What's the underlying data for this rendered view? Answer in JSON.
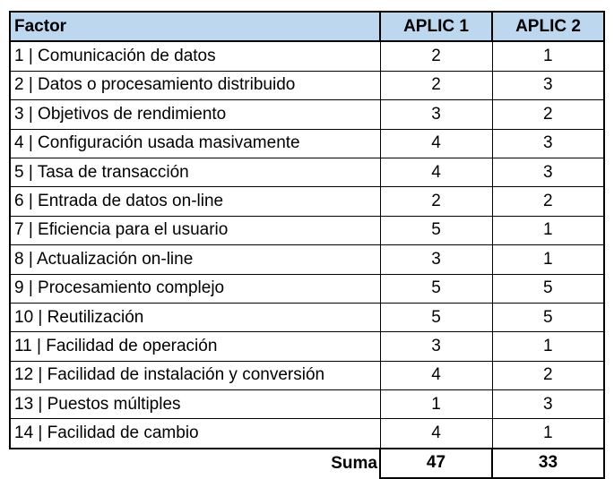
{
  "table": {
    "headers": {
      "factor": "Factor",
      "aplic1": "APLIC 1",
      "aplic2": "APLIC 2"
    },
    "rows": [
      {
        "factor": "1 | Comunicación de datos",
        "aplic1": "2",
        "aplic2": "1"
      },
      {
        "factor": "2 | Datos o procesamiento distribuido",
        "aplic1": "2",
        "aplic2": "3"
      },
      {
        "factor": "3 | Objetivos de rendimiento",
        "aplic1": "3",
        "aplic2": "2"
      },
      {
        "factor": "4 | Configuración usada masivamente",
        "aplic1": "4",
        "aplic2": "3"
      },
      {
        "factor": "5 | Tasa de transacción",
        "aplic1": "4",
        "aplic2": "3"
      },
      {
        "factor": "6 | Entrada de datos on-line",
        "aplic1": "2",
        "aplic2": "2"
      },
      {
        "factor": "7 | Eficiencia para el usuario",
        "aplic1": "5",
        "aplic2": "1"
      },
      {
        "factor": "8 | Actualización on-line",
        "aplic1": "3",
        "aplic2": "1"
      },
      {
        "factor": "9 | Procesamiento complejo",
        "aplic1": "5",
        "aplic2": "5"
      },
      {
        "factor": "10 | Reutilización",
        "aplic1": "5",
        "aplic2": "5"
      },
      {
        "factor": "11 | Facilidad de operación",
        "aplic1": "3",
        "aplic2": "1"
      },
      {
        "factor": "12 | Facilidad de instalación y conversión",
        "aplic1": "4",
        "aplic2": "2"
      },
      {
        "factor": "13 | Puestos múltiples",
        "aplic1": "1",
        "aplic2": "3"
      },
      {
        "factor": "14 | Facilidad de cambio",
        "aplic1": "4",
        "aplic2": "1"
      }
    ],
    "summary": {
      "label": "Suma",
      "aplic1": "47",
      "aplic2": "33"
    }
  },
  "colors": {
    "header_bg": "#bdd7ee",
    "border": "#000000"
  }
}
